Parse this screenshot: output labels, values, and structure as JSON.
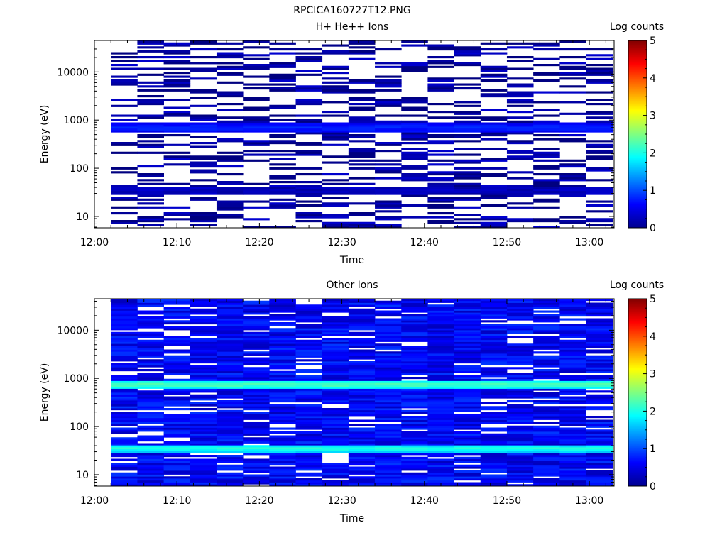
{
  "figure": {
    "title": "RPCICA160727T12.PNG"
  },
  "chart_data": [
    {
      "type": "heatmap",
      "title": "H+ He++ Ions",
      "xlabel": "Time",
      "ylabel": "Energy (eV)",
      "y_scale": "log",
      "ylim": [
        5.8,
        45000
      ],
      "xlim": [
        "12:00",
        "13:03"
      ],
      "x_ticks": [
        "12:00",
        "12:10",
        "12:20",
        "12:30",
        "12:40",
        "12:50",
        "13:00"
      ],
      "y_ticks": [
        "10",
        "100",
        "1000",
        "10000"
      ],
      "colorbar": {
        "label": "Log counts",
        "range": [
          0,
          5
        ],
        "ticks": [
          "0",
          "1",
          "2",
          "3",
          "4",
          "5"
        ]
      },
      "time_bins_start": "12:02",
      "time_bin_width_min": 3.2,
      "n_time_bins": 19,
      "dominant_features": [
        {
          "energy_eV": 700,
          "log_counts": 0.8
        },
        {
          "energy_eV": 35,
          "log_counts": 0.3
        }
      ],
      "typical_background_log_counts": 0.1
    },
    {
      "type": "heatmap",
      "title": "Other Ions",
      "xlabel": "Time",
      "ylabel": "Energy (eV)",
      "y_scale": "log",
      "ylim": [
        5.8,
        45000
      ],
      "xlim": [
        "12:00",
        "13:03"
      ],
      "x_ticks": [
        "12:00",
        "12:10",
        "12:20",
        "12:30",
        "12:40",
        "12:50",
        "13:00"
      ],
      "y_ticks": [
        "10",
        "100",
        "1000",
        "10000"
      ],
      "colorbar": {
        "label": "Log counts",
        "range": [
          0,
          5
        ],
        "ticks": [
          "0",
          "1",
          "2",
          "3",
          "4",
          "5"
        ]
      },
      "time_bins_start": "12:02",
      "time_bin_width_min": 3.2,
      "n_time_bins": 19,
      "dominant_features": [
        {
          "energy_eV": 750,
          "log_counts": 2.3
        },
        {
          "energy_eV": 35,
          "log_counts": 2.1
        }
      ],
      "typical_background_log_counts": 0.6
    }
  ]
}
